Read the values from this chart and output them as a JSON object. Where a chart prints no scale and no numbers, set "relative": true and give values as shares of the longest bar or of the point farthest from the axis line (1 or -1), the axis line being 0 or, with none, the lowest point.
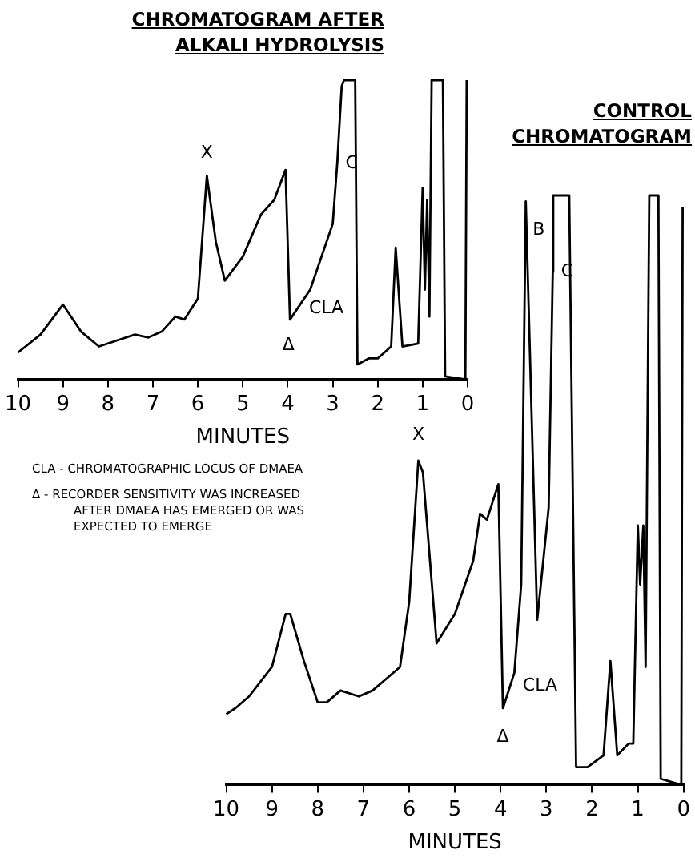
{
  "chart_data": [
    {
      "type": "line",
      "title": "CHROMATOGRAM AFTER ALKALI HYDROLYSIS",
      "xlabel": "MINUTES",
      "relative": true,
      "color": "#000000",
      "marker": "none",
      "tick_labels": "x",
      "xlim": [
        10,
        0
      ],
      "xticks": [
        10,
        9,
        8,
        7,
        6,
        5,
        4,
        3,
        2,
        1,
        0
      ],
      "x": [
        10,
        9.5,
        9,
        8.6,
        8.2,
        7.8,
        7.4,
        7.1,
        6.8,
        6.5,
        6.3,
        6,
        5.8,
        5.6,
        5.4,
        5,
        4.6,
        4.3,
        4.05,
        3.95,
        3.5,
        3,
        2.9,
        2.8,
        2.75,
        2.5,
        2.45,
        2.2,
        2,
        1.7,
        1.6,
        1.45,
        1.1,
        1,
        0.95,
        0.9,
        0.85,
        0.8,
        0.55,
        0.5,
        0.05,
        0.02
      ],
      "values": [
        0.09,
        0.15,
        0.25,
        0.16,
        0.11,
        0.13,
        0.15,
        0.14,
        0.16,
        0.21,
        0.2,
        0.27,
        0.68,
        0.46,
        0.33,
        0.41,
        0.55,
        0.6,
        0.7,
        0.2,
        0.3,
        0.52,
        0.72,
        0.98,
        1,
        1,
        0.05,
        0.07,
        0.07,
        0.11,
        0.44,
        0.11,
        0.12,
        0.64,
        0.3,
        0.6,
        0.21,
        1,
        1,
        0.01,
        0,
        1
      ],
      "annotations": [
        {
          "text": "X",
          "x": 5.8,
          "y": 0.68
        },
        {
          "text": "C",
          "x": 2.9,
          "y": 0.72
        },
        {
          "text": "CLA",
          "x": 3.5,
          "y": 0.3
        },
        {
          "text": "Δ",
          "x": 3.95,
          "y": 0.2
        },
        "CLA - CHROMATOGRAPHIC LOCUS OF DMAEA",
        "Δ - RECORDER SENSITIVITY WAS INCREASED AFTER DMAEA HAS EMERGED OR WAS EXPECTED TO EMERGE"
      ]
    },
    {
      "type": "line",
      "title": "CONTROL CHROMATOGRAM",
      "xlabel": "MINUTES",
      "relative": true,
      "color": "#000000",
      "marker": "none",
      "tick_labels": "x",
      "xlim": [
        10,
        0
      ],
      "xticks": [
        10,
        9,
        8,
        7,
        6,
        5,
        4,
        3,
        2,
        1,
        0
      ],
      "x": [
        10,
        9.8,
        9.5,
        9,
        8.7,
        8.6,
        8.3,
        8,
        7.8,
        7.5,
        7.1,
        6.8,
        6.5,
        6.2,
        6,
        5.8,
        5.7,
        5.4,
        5,
        4.6,
        4.45,
        4.3,
        4.05,
        3.95,
        3.7,
        3.55,
        3.45,
        3.2,
        2.95,
        2.86,
        2.85,
        2.5,
        2.35,
        2.1,
        1.75,
        1.6,
        1.45,
        1.2,
        1.1,
        1,
        0.95,
        0.88,
        0.83,
        0.75,
        0.55,
        0.5,
        0.05,
        0.02
      ],
      "values": [
        0.12,
        0.13,
        0.15,
        0.2,
        0.29,
        0.29,
        0.21,
        0.14,
        0.14,
        0.16,
        0.15,
        0.16,
        0.18,
        0.2,
        0.31,
        0.55,
        0.53,
        0.24,
        0.29,
        0.38,
        0.46,
        0.45,
        0.51,
        0.13,
        0.19,
        0.34,
        0.99,
        0.28,
        0.47,
        0.87,
        1,
        1,
        0.03,
        0.03,
        0.05,
        0.21,
        0.05,
        0.07,
        0.07,
        0.44,
        0.34,
        0.44,
        0.2,
        1,
        1,
        0.01,
        0,
        0.98
      ],
      "annotations": [
        {
          "text": "X",
          "x": 5.8,
          "y": 0.55
        },
        {
          "text": "B",
          "x": 3.45,
          "y": 0.99
        },
        {
          "text": "C",
          "x": 2.86,
          "y": 0.87
        },
        {
          "text": "CLA",
          "x": 3.7,
          "y": 0.19
        },
        {
          "text": "Δ",
          "x": 3.95,
          "y": 0.13
        }
      ]
    }
  ]
}
